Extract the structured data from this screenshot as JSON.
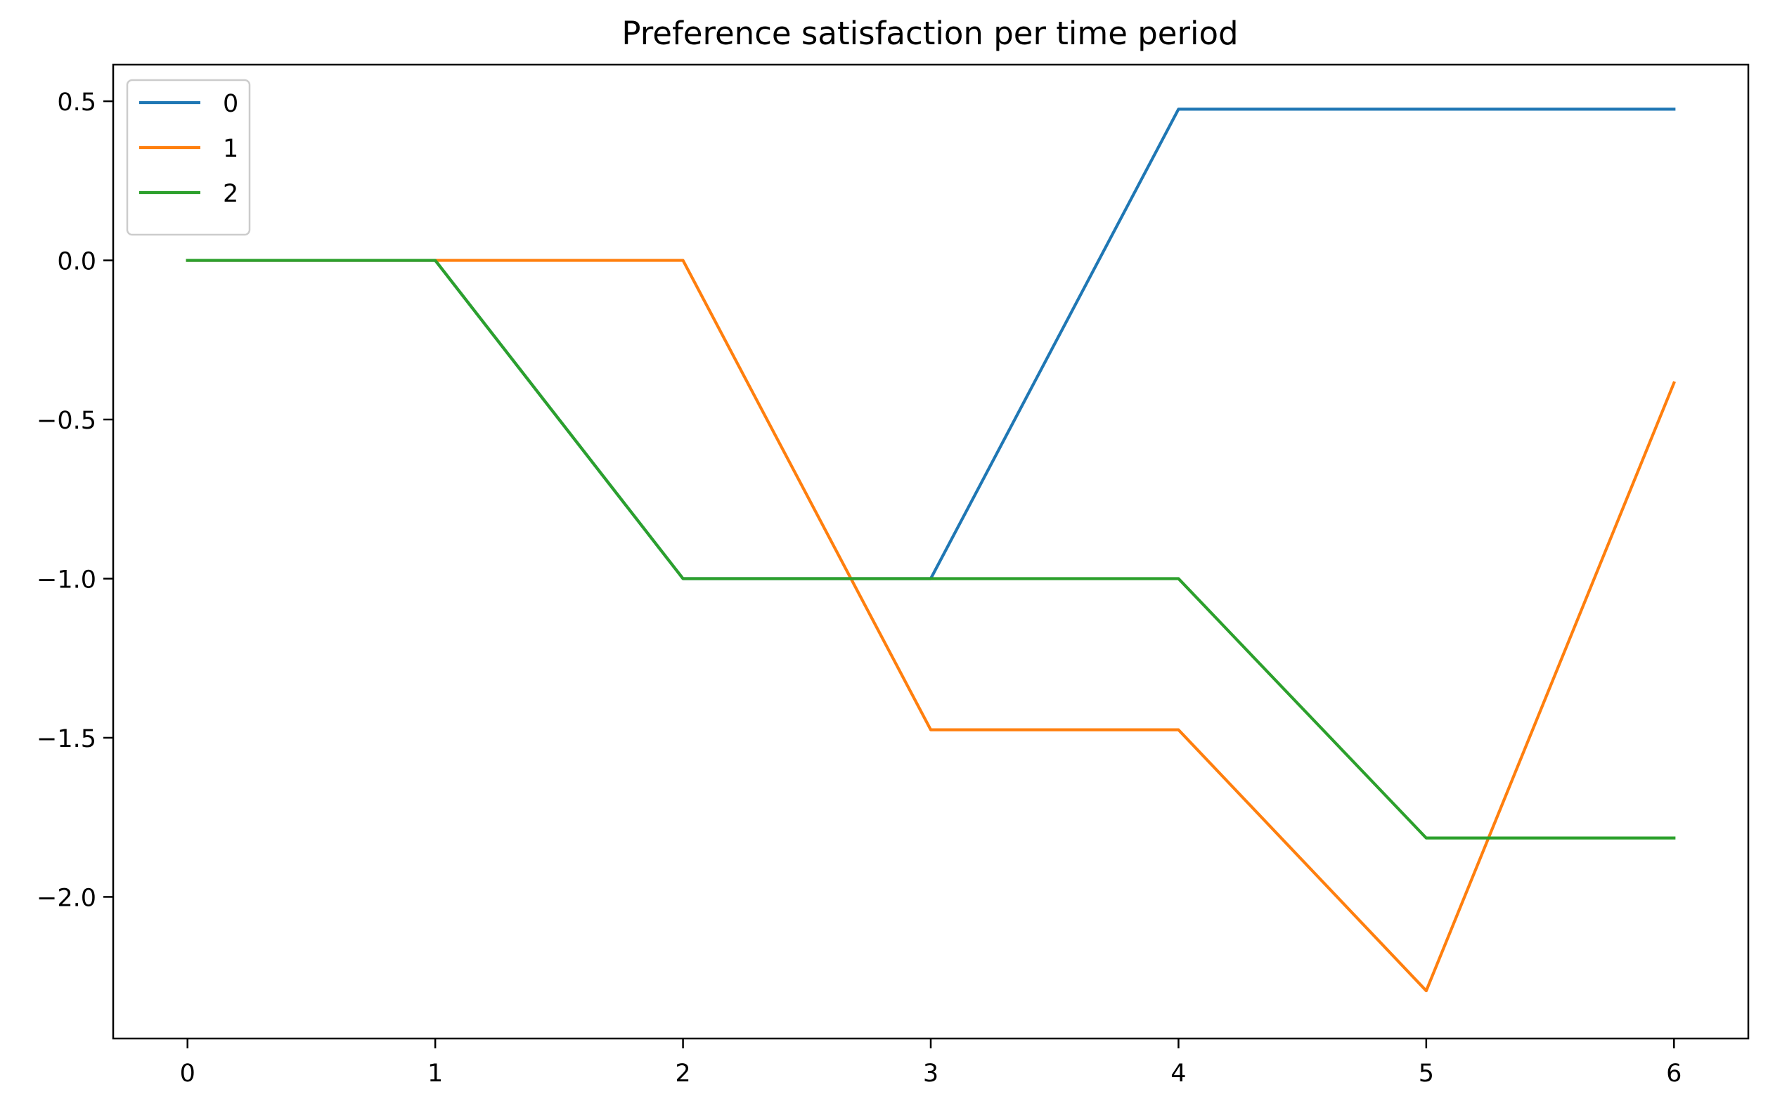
{
  "chart_data": {
    "type": "line",
    "title": "Preference satisfaction per time period",
    "xlabel": "",
    "ylabel": "",
    "x": [
      0,
      1,
      2,
      3,
      4,
      5,
      6
    ],
    "xlim": [
      -0.3,
      6.3
    ],
    "ylim": [
      -2.445,
      0.615
    ],
    "x_ticks": [
      0,
      1,
      2,
      3,
      4,
      5,
      6
    ],
    "x_tick_labels": [
      "0",
      "1",
      "2",
      "3",
      "4",
      "5",
      "6"
    ],
    "y_ticks": [
      0.5,
      0.0,
      -0.5,
      -1.0,
      -1.5,
      -2.0
    ],
    "y_tick_labels": [
      "0.5",
      "0.0",
      "−0.5",
      "−1.0",
      "−1.5",
      "−2.0"
    ],
    "grid": false,
    "legend_position": "top-left",
    "series": [
      {
        "name": "0",
        "color": "#1f77b4",
        "values": [
          0.0,
          0.0,
          -1.0,
          -1.0,
          0.475,
          0.475,
          0.475
        ]
      },
      {
        "name": "1",
        "color": "#ff7f0e",
        "values": [
          0.0,
          0.0,
          0.0,
          -1.475,
          -1.475,
          -2.295,
          -0.385
        ]
      },
      {
        "name": "2",
        "color": "#2ca02c",
        "values": [
          0.0,
          0.0,
          -1.0,
          -1.0,
          -1.0,
          -1.815,
          -1.815
        ]
      }
    ]
  }
}
